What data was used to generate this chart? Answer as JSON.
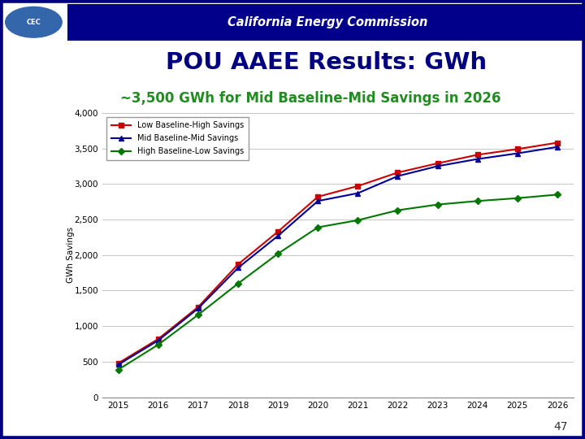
{
  "title": "POU AAEE Results: GWh",
  "subtitle": "~3,500 GWh for Mid Baseline-Mid Savings in 2026",
  "header": "California Energy Commission",
  "ylabel": "GWh Savings",
  "years": [
    2015,
    2016,
    2017,
    2018,
    2019,
    2020,
    2021,
    2022,
    2023,
    2024,
    2025,
    2026
  ],
  "series_order": [
    "Low Baseline-High Savings",
    "Mid Baseline-Mid Savings",
    "High Baseline-Low Savings"
  ],
  "series": {
    "Low Baseline-High Savings": {
      "values": [
        480,
        820,
        1270,
        1870,
        2330,
        2820,
        2970,
        3160,
        3290,
        3410,
        3490,
        3580
      ],
      "color": "#CC0000",
      "marker": "s"
    },
    "Mid Baseline-Mid Savings": {
      "values": [
        460,
        800,
        1250,
        1820,
        2270,
        2760,
        2870,
        3110,
        3250,
        3350,
        3430,
        3520
      ],
      "color": "#000099",
      "marker": "^"
    },
    "High Baseline-Low Savings": {
      "values": [
        390,
        740,
        1160,
        1600,
        2020,
        2390,
        2490,
        2630,
        2710,
        2760,
        2800,
        2850
      ],
      "color": "#007700",
      "marker": "D"
    }
  },
  "ylim": [
    0,
    4000
  ],
  "yticks": [
    0,
    500,
    1000,
    1500,
    2000,
    2500,
    3000,
    3500,
    4000
  ],
  "ytick_labels": [
    "0",
    "500",
    "1,000",
    "1,500",
    "2,000",
    "2,500",
    "3,000",
    "3,500",
    "4,000"
  ],
  "header_bg": "#00008B",
  "header_text_color": "#FFFFFF",
  "title_color": "#000080",
  "subtitle_color": "#228B22",
  "bg_color": "#FFFFFF",
  "slide_bg": "#FFFFFF",
  "left_bar_color": "#C8C8C8",
  "page_number": "47",
  "border_color": "#000080",
  "grid_color": "#BBBBBB",
  "axis_color": "#888888"
}
